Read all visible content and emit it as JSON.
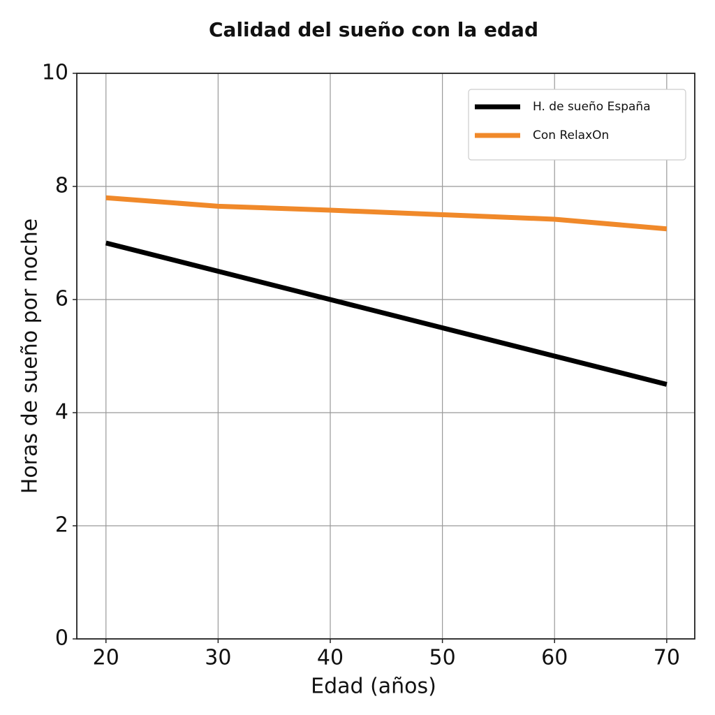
{
  "chart_data": {
    "type": "line",
    "title": "Calidad del sueño con la edad",
    "x_label": "Edad (años)",
    "y_label": "Horas de sueño por noche",
    "x": [
      20,
      30,
      40,
      50,
      60,
      70
    ],
    "series": [
      {
        "name": "H. de sueño España",
        "color": "#000000",
        "values": [
          7.0,
          6.5,
          6.0,
          5.5,
          5.0,
          4.5
        ]
      },
      {
        "name": "Con RelaxOn",
        "color": "#f0892a",
        "values": [
          7.8,
          7.65,
          7.58,
          7.5,
          7.42,
          7.25
        ]
      }
    ],
    "xlim": [
      17.4,
      72.5
    ],
    "xticks": [
      20,
      30,
      40,
      50,
      60,
      70
    ],
    "ylim": [
      0,
      10
    ],
    "yticks": [
      0,
      2,
      4,
      6,
      8,
      10
    ],
    "grid": true,
    "legend": "upper-right"
  }
}
